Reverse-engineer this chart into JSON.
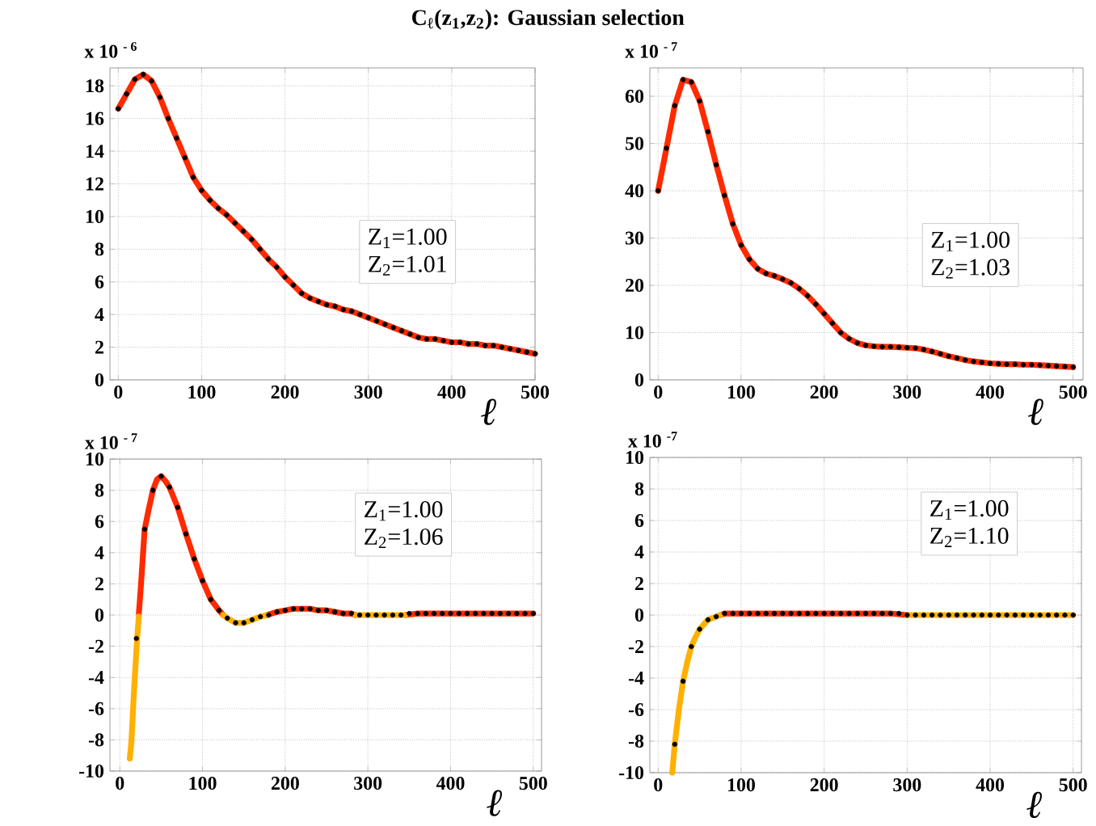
{
  "chart_data": [
    {
      "type": "line",
      "title": "C$_{ℓ}$(z$_{1}$,z$_{2}$): Gaussian selection",
      "ylabel": "x 10 $^{- 6}$",
      "xlabel": "ℓ",
      "grid": true,
      "xlim": [
        -10,
        500
      ],
      "ylim": [
        0,
        19.1
      ],
      "xticks": [
        0,
        100,
        200,
        300,
        400,
        500
      ],
      "yticks": [
        0,
        2,
        4,
        6,
        8,
        10,
        12,
        14,
        16,
        18
      ],
      "annotations": [
        "Z$_{1}$=1.00",
        "Z$_{2}$=1.01"
      ],
      "x": [
        0,
        10,
        20,
        30,
        40,
        50,
        60,
        70,
        80,
        90,
        100,
        110,
        120,
        130,
        140,
        150,
        160,
        170,
        180,
        190,
        200,
        210,
        220,
        230,
        240,
        250,
        260,
        270,
        280,
        290,
        300,
        310,
        320,
        330,
        340,
        350,
        360,
        370,
        380,
        390,
        400,
        410,
        420,
        430,
        440,
        450,
        460,
        470,
        480,
        490,
        500
      ],
      "series": [
        {
          "color": "#ff2a00",
          "values": [
            16.6,
            17.5,
            18.4,
            18.7,
            18.3,
            17.3,
            16.0,
            14.8,
            13.6,
            12.4,
            11.6,
            11.0,
            10.5,
            10.1,
            9.6,
            9.1,
            8.6,
            8.0,
            7.4,
            6.9,
            6.3,
            5.8,
            5.3,
            5.0,
            4.8,
            4.6,
            4.5,
            4.3,
            4.2,
            4.0,
            3.8,
            3.6,
            3.4,
            3.2,
            3.0,
            2.8,
            2.6,
            2.5,
            2.5,
            2.4,
            2.3,
            2.3,
            2.2,
            2.2,
            2.1,
            2.1,
            2.0,
            1.9,
            1.8,
            1.7,
            1.6
          ]
        },
        {
          "type": "scatter",
          "color": "#000000",
          "values": [
            16.6,
            17.5,
            18.4,
            18.7,
            18.3,
            17.3,
            16.0,
            14.8,
            13.6,
            12.4,
            11.6,
            11.0,
            10.5,
            10.1,
            9.6,
            9.1,
            8.6,
            8.0,
            7.4,
            6.9,
            6.3,
            5.8,
            5.3,
            5.0,
            4.8,
            4.6,
            4.5,
            4.3,
            4.2,
            4.0,
            3.8,
            3.6,
            3.4,
            3.2,
            3.0,
            2.8,
            2.6,
            2.5,
            2.5,
            2.4,
            2.3,
            2.3,
            2.2,
            2.2,
            2.1,
            2.1,
            2.0,
            1.9,
            1.8,
            1.7,
            1.6
          ]
        }
      ]
    },
    {
      "type": "line",
      "ylabel": "x 10 $^{- 7}$",
      "xlabel": "ℓ",
      "grid": true,
      "xlim": [
        -10,
        512
      ],
      "ylim": [
        0,
        66
      ],
      "xticks": [
        0,
        100,
        200,
        300,
        400,
        500
      ],
      "yticks": [
        0,
        10,
        20,
        30,
        40,
        50,
        60
      ],
      "annotations": [
        "Z$_{1}$=1.00",
        "Z$_{2}$=1.03"
      ],
      "x": [
        0,
        10,
        20,
        30,
        40,
        50,
        60,
        70,
        80,
        90,
        100,
        110,
        120,
        130,
        140,
        150,
        160,
        170,
        180,
        190,
        200,
        210,
        220,
        230,
        240,
        250,
        260,
        270,
        280,
        290,
        300,
        310,
        320,
        330,
        340,
        350,
        360,
        370,
        380,
        390,
        400,
        410,
        420,
        430,
        440,
        450,
        460,
        470,
        480,
        490,
        500
      ],
      "series": [
        {
          "color": "#ff2a00",
          "values": [
            40,
            49,
            58,
            63.5,
            63,
            59,
            52.5,
            45.5,
            39,
            33,
            28.5,
            25.5,
            23.5,
            22.5,
            22,
            21.3,
            20.5,
            19.3,
            17.8,
            16,
            14,
            12,
            10,
            8.7,
            7.8,
            7.3,
            7.1,
            7,
            7,
            6.9,
            6.8,
            6.7,
            6.4,
            6,
            5.5,
            5,
            4.6,
            4.2,
            3.9,
            3.7,
            3.5,
            3.4,
            3.3,
            3.3,
            3.2,
            3.2,
            3.1,
            3,
            2.9,
            2.8,
            2.7
          ]
        },
        {
          "type": "scatter",
          "color": "#000000",
          "values": [
            40,
            49,
            58,
            63.5,
            63,
            59,
            52.5,
            45.5,
            39,
            33,
            28.5,
            25.5,
            23.5,
            22.5,
            22,
            21.3,
            20.5,
            19.3,
            17.8,
            16,
            14,
            12,
            10,
            8.7,
            7.8,
            7.3,
            7.1,
            7,
            7,
            6.9,
            6.8,
            6.7,
            6.4,
            6,
            5.5,
            5,
            4.6,
            4.2,
            3.9,
            3.7,
            3.5,
            3.4,
            3.3,
            3.3,
            3.2,
            3.2,
            3.1,
            3,
            2.9,
            2.8,
            2.7
          ]
        }
      ]
    },
    {
      "type": "line",
      "ylabel": "x 10 $^{- 7}$",
      "xlabel": "ℓ",
      "grid": true,
      "xlim": [
        -12,
        510
      ],
      "ylim": [
        -10,
        10
      ],
      "xticks": [
        0,
        100,
        200,
        300,
        400,
        500
      ],
      "yticks": [
        -10,
        -8,
        -6,
        -4,
        -2,
        0,
        2,
        4,
        6,
        8,
        10
      ],
      "annotations": [
        "Z$_{1}$=1.00",
        "Z$_{2}$=1.06"
      ],
      "series": [
        {
          "color": "#ff2a00",
          "x": [
            23,
            25,
            30,
            35,
            40,
            45,
            50,
            55,
            60,
            70,
            80,
            90,
            100,
            110,
            120,
            125,
            150,
            178,
            190,
            200,
            210,
            220,
            230,
            240,
            250,
            260,
            270,
            280,
            285,
            315,
            345,
            360,
            380,
            400,
            420,
            440,
            460,
            480,
            500
          ],
          "values": [
            0.1,
            1.5,
            5.5,
            6.8,
            8.0,
            8.7,
            8.9,
            8.6,
            8.2,
            6.9,
            5.2,
            3.6,
            2.2,
            1.0,
            0.3,
            0,
            null,
            0,
            0.2,
            0.3,
            0.4,
            0.4,
            0.4,
            0.3,
            0.3,
            0.2,
            0.1,
            0.1,
            0,
            null,
            0,
            0.1,
            0.1,
            0.1,
            0.1,
            0.1,
            0.1,
            0.1,
            0.1
          ]
        },
        {
          "color": "#ffb000",
          "x": [
            12,
            14,
            15,
            16,
            17,
            18,
            19,
            20,
            21,
            22,
            23,
            70,
            125,
            130,
            140,
            150,
            160,
            170,
            178,
            250,
            285,
            300,
            320,
            345
          ],
          "values": [
            -9.2,
            -8.1,
            -7.1,
            -6.0,
            -5.0,
            -4.1,
            -3.2,
            -2.3,
            -1.5,
            -0.7,
            -0.1,
            null,
            0,
            -0.2,
            -0.5,
            -0.5,
            -0.3,
            -0.1,
            0,
            null,
            0,
            0,
            0,
            0
          ]
        },
        {
          "type": "scatter",
          "color": "#000000",
          "x": [
            20,
            30,
            40,
            50,
            60,
            70,
            80,
            90,
            100,
            110,
            120,
            130,
            140,
            150,
            160,
            170,
            180,
            190,
            200,
            210,
            220,
            230,
            240,
            250,
            260,
            270,
            280,
            290,
            300,
            310,
            320,
            330,
            340,
            350,
            360,
            370,
            380,
            390,
            400,
            410,
            420,
            430,
            440,
            450,
            460,
            470,
            480,
            490,
            500
          ],
          "values": [
            -1.5,
            5.5,
            8.0,
            8.9,
            8.2,
            6.9,
            5.2,
            3.6,
            2.2,
            1.0,
            0.3,
            -0.2,
            -0.5,
            -0.5,
            -0.3,
            -0.1,
            0,
            0.2,
            0.3,
            0.4,
            0.4,
            0.4,
            0.3,
            0.3,
            0.2,
            0.1,
            0.1,
            0,
            0,
            0,
            0,
            0,
            0,
            0.1,
            0.1,
            0.1,
            0.1,
            0.1,
            0.1,
            0.1,
            0.1,
            0.1,
            0.1,
            0.1,
            0.1,
            0.1,
            0.1,
            0.1,
            0.1
          ]
        }
      ]
    },
    {
      "type": "line",
      "ylabel": "x 10 $^{-7}$",
      "xlabel": "ℓ",
      "grid": true,
      "xlim": [
        -10,
        510
      ],
      "ylim": [
        -10,
        10
      ],
      "xticks": [
        0,
        100,
        200,
        300,
        400,
        500
      ],
      "yticks": [
        -10,
        -8,
        -6,
        -4,
        -2,
        0,
        2,
        4,
        6,
        8,
        10
      ],
      "annotations": [
        "Z$_{1}$=1.00",
        "Z$_{2}$=1.10"
      ],
      "series": [
        {
          "color": "#ff2a00",
          "x": [
            75,
            80,
            90,
            100,
            110,
            120,
            140,
            160,
            180,
            200,
            220,
            240,
            260,
            280,
            300
          ],
          "values": [
            0,
            0.1,
            0.1,
            0.1,
            0.1,
            0.1,
            0.1,
            0.1,
            0.1,
            0.1,
            0.1,
            0.1,
            0.1,
            0.1,
            0
          ]
        },
        {
          "color": "#ffb000",
          "x": [
            17,
            20,
            25,
            30,
            35,
            40,
            45,
            50,
            55,
            60,
            65,
            70,
            75,
            185,
            300,
            320,
            340,
            360,
            380,
            400,
            420,
            440,
            460,
            480,
            500
          ],
          "values": [
            -10,
            -8.2,
            -6,
            -4.2,
            -3,
            -2,
            -1.4,
            -0.9,
            -0.6,
            -0.3,
            -0.2,
            -0.1,
            0,
            null,
            0,
            0,
            0,
            0,
            0,
            0,
            0,
            0,
            0,
            0,
            0
          ]
        },
        {
          "type": "scatter",
          "color": "#000000",
          "x": [
            20,
            30,
            40,
            50,
            60,
            70,
            80,
            90,
            100,
            110,
            120,
            130,
            140,
            150,
            160,
            170,
            180,
            190,
            200,
            210,
            220,
            230,
            240,
            250,
            260,
            270,
            280,
            290,
            300,
            310,
            320,
            330,
            340,
            350,
            360,
            370,
            380,
            390,
            400,
            410,
            420,
            430,
            440,
            450,
            460,
            470,
            480,
            490,
            500
          ],
          "values": [
            -8.2,
            -4.2,
            -2.0,
            -0.9,
            -0.3,
            -0.1,
            0.1,
            0.1,
            0.1,
            0.1,
            0.1,
            0.1,
            0.1,
            0.1,
            0.1,
            0.1,
            0.1,
            0.1,
            0.1,
            0.1,
            0.1,
            0.1,
            0.1,
            0.1,
            0.1,
            0.1,
            0.1,
            0.1,
            0,
            0,
            0,
            0,
            0,
            0,
            0,
            0,
            0,
            0,
            0,
            0,
            0,
            0,
            0,
            0,
            0,
            0,
            0,
            0,
            0
          ]
        }
      ]
    }
  ]
}
